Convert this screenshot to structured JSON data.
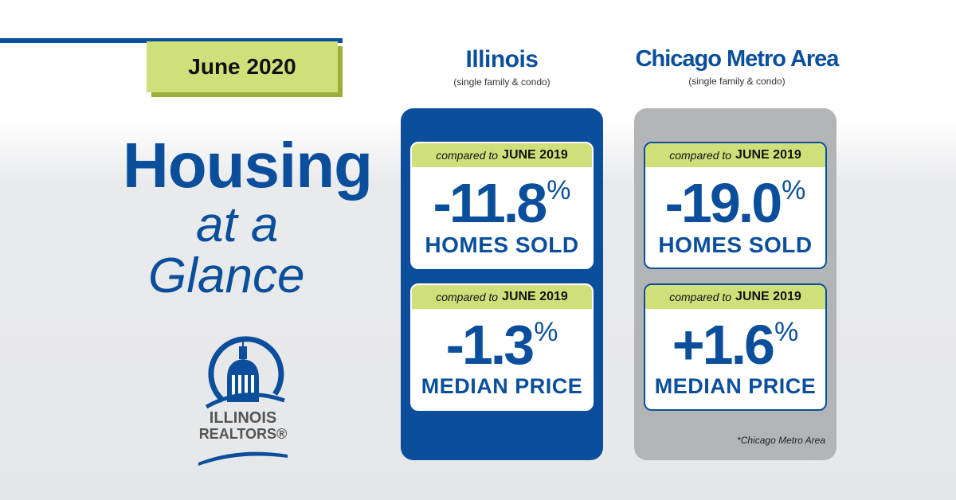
{
  "date_badge": "June 2020",
  "headline": {
    "line1": "Housing",
    "line2": "at a",
    "line3": "Glance"
  },
  "logo": {
    "line1": "ILLINOIS",
    "line2": "REALTORS®"
  },
  "columns": [
    {
      "name": "Illinois",
      "subtitle": "(single family & condo)",
      "cards": [
        {
          "compare_prefix": "compared to",
          "compare_year": "JUNE 2019",
          "value": "-11.8",
          "unit": "%",
          "label": "HOMES SOLD"
        },
        {
          "compare_prefix": "compared to",
          "compare_year": "JUNE 2019",
          "value": "-1.3",
          "unit": "%",
          "label": "MEDIAN PRICE"
        }
      ]
    },
    {
      "name": "Chicago Metro Area",
      "subtitle": "(single family & condo)",
      "cards": [
        {
          "compare_prefix": "compared to",
          "compare_year": "JUNE 2019",
          "value": "-19.0",
          "unit": "%",
          "label": "HOMES SOLD"
        },
        {
          "compare_prefix": "compared to",
          "compare_year": "JUNE 2019",
          "value": "+1.6",
          "unit": "%",
          "label": "MEDIAN PRICE"
        }
      ],
      "footnote": "*Chicago Metro Area"
    }
  ],
  "colors": {
    "brand_blue": "#0b4f9c",
    "accent_green": "#cfe07a",
    "panel_gray": "#b3b4b6"
  },
  "icons": {
    "logo": "capitol-dome-icon"
  }
}
